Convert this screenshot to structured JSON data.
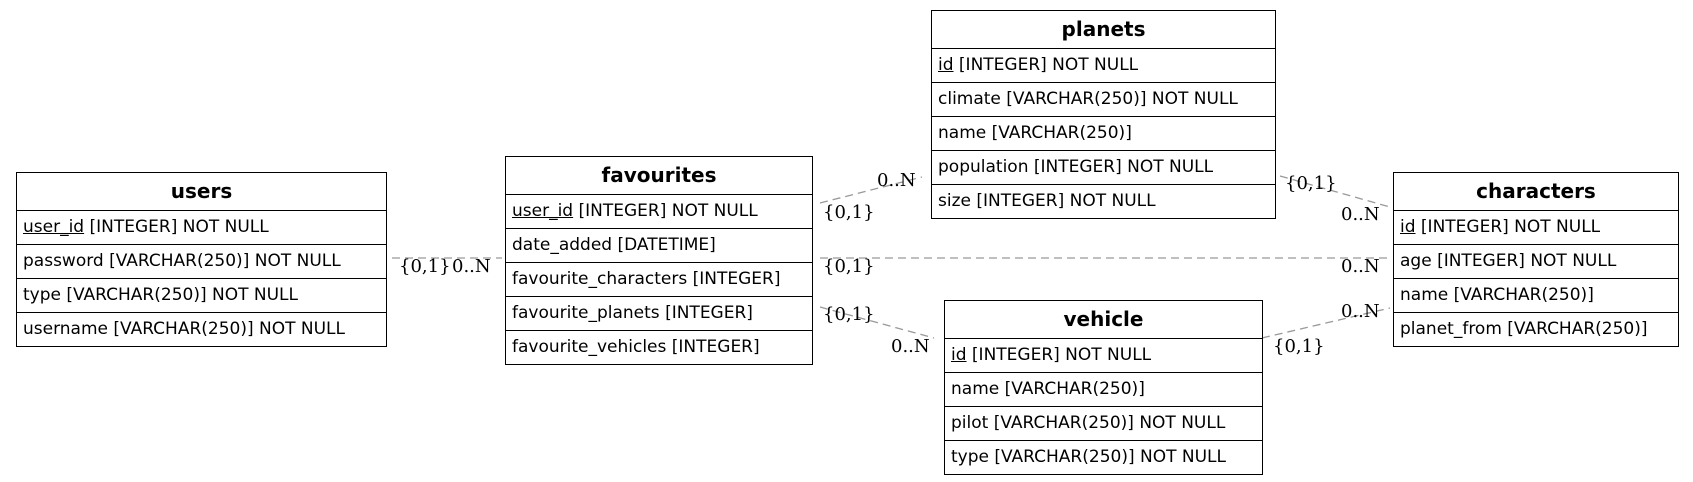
{
  "entities": {
    "users": {
      "name": "users",
      "fields": [
        {
          "key": "user_id",
          "rest": " [INTEGER] NOT NULL"
        },
        {
          "key": "",
          "rest": "password [VARCHAR(250)] NOT NULL"
        },
        {
          "key": "",
          "rest": "type [VARCHAR(250)] NOT NULL"
        },
        {
          "key": "",
          "rest": "username [VARCHAR(250)] NOT NULL"
        }
      ]
    },
    "favourites": {
      "name": "favourites",
      "fields": [
        {
          "key": "user_id",
          "rest": " [INTEGER] NOT NULL"
        },
        {
          "key": "",
          "rest": "date_added [DATETIME]"
        },
        {
          "key": "",
          "rest": "favourite_characters [INTEGER]"
        },
        {
          "key": "",
          "rest": "favourite_planets [INTEGER]"
        },
        {
          "key": "",
          "rest": "favourite_vehicles [INTEGER]"
        }
      ]
    },
    "planets": {
      "name": "planets",
      "fields": [
        {
          "key": "id",
          "rest": " [INTEGER] NOT NULL"
        },
        {
          "key": "",
          "rest": "climate [VARCHAR(250)] NOT NULL"
        },
        {
          "key": "",
          "rest": "name [VARCHAR(250)]"
        },
        {
          "key": "",
          "rest": "population [INTEGER] NOT NULL"
        },
        {
          "key": "",
          "rest": "size [INTEGER] NOT NULL"
        }
      ]
    },
    "vehicle": {
      "name": "vehicle",
      "fields": [
        {
          "key": "id",
          "rest": " [INTEGER] NOT NULL"
        },
        {
          "key": "",
          "rest": "name [VARCHAR(250)]"
        },
        {
          "key": "",
          "rest": "pilot [VARCHAR(250)] NOT NULL"
        },
        {
          "key": "",
          "rest": "type [VARCHAR(250)] NOT NULL"
        }
      ]
    },
    "characters": {
      "name": "characters",
      "fields": [
        {
          "key": "id",
          "rest": " [INTEGER] NOT NULL"
        },
        {
          "key": "",
          "rest": "age [INTEGER] NOT NULL"
        },
        {
          "key": "",
          "rest": "name [VARCHAR(250)]"
        },
        {
          "key": "",
          "rest": "planet_from [VARCHAR(250)]"
        }
      ]
    }
  },
  "relationships": [
    {
      "from": "users",
      "to": "favourites",
      "from_card": "{0,1}",
      "to_card": "0..N"
    },
    {
      "from": "favourites",
      "to": "planets",
      "from_card": "{0,1}",
      "to_card": "0..N"
    },
    {
      "from": "favourites",
      "to": "characters",
      "from_card": "{0,1}",
      "to_card": "0..N"
    },
    {
      "from": "favourites",
      "to": "vehicle",
      "from_card": "{0,1}",
      "to_card": "0..N"
    },
    {
      "from": "planets",
      "to": "characters",
      "from_card": "{0,1}",
      "to_card": "0..N"
    },
    {
      "from": "vehicle",
      "to": "characters",
      "from_card": "{0,1}",
      "to_card": "0..N"
    }
  ],
  "colors": {
    "connector": "#999999",
    "border": "#000000"
  }
}
